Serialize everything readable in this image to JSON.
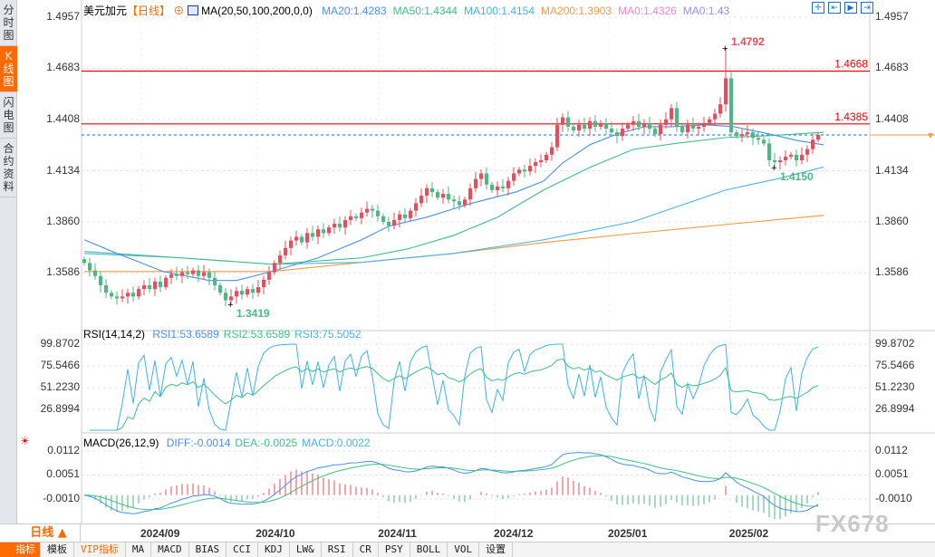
{
  "sidebar": {
    "tabs": [
      {
        "label": "分时图",
        "active": false
      },
      {
        "label": "K线图",
        "active": true
      },
      {
        "label": "闪电图",
        "active": false
      },
      {
        "label": "合约资料",
        "active": false
      }
    ]
  },
  "header": {
    "symbol": "美元加元",
    "period": "【日线】",
    "ma_label": "MA(20,50,100,200,0,0)",
    "ma_values": [
      {
        "text": "MA20:1.4283",
        "color": "#4a90e8"
      },
      {
        "text": "MA50:1.4344",
        "color": "#3fbf86"
      },
      {
        "text": "MA100:1.4154",
        "color": "#48b4e0"
      },
      {
        "text": "MA200:1.3903",
        "color": "#f59a45"
      },
      {
        "text": "MA0:1.4326",
        "color": "#ea86d8"
      },
      {
        "text": "MA0:1.43",
        "color": "#9b8cf0"
      }
    ]
  },
  "toolbar_icons": [
    "crosshair-icon",
    "zoom-range-icon",
    "play-icon",
    "exit-icon"
  ],
  "colors": {
    "up": "#eb4b5a",
    "down": "#4fb783",
    "ma20": "#4a90e8",
    "ma50": "#3fbf86",
    "ma100": "#48b4e0",
    "ma200": "#f59a45",
    "hline": "#f00000",
    "current": "#1a6fd0",
    "rsi_fast": "#3cb4e6",
    "rsi_slow": "#3fbf86"
  },
  "rsi": {
    "label": "RSI(14,14,2)",
    "values": [
      {
        "text": "RSI1:53.6589",
        "color": "#4a90e8"
      },
      {
        "text": "RSI2:53.6589",
        "color": "#3fbf86"
      },
      {
        "text": "RSI3:75.5052",
        "color": "#48b4e0"
      }
    ],
    "ticks": [
      "99.8702",
      "75.5466",
      "51.2230",
      "26.8994"
    ]
  },
  "macd": {
    "label": "MACD(26,12,9)",
    "values": [
      {
        "text": "DIFF:-0.0014",
        "color": "#4a90e8"
      },
      {
        "text": "DEA:-0.0025",
        "color": "#3fbf86"
      },
      {
        "text": "MACD:0.0022",
        "color": "#48b4e0"
      }
    ],
    "ticks": [
      "0.0112",
      "0.0051",
      "-0.0010"
    ]
  },
  "chart_data": {
    "type": "candlestick",
    "price_ticks": [
      "1.4957",
      "1.4683",
      "1.4408",
      "1.4134",
      "1.3860",
      "1.3586"
    ],
    "ylim": [
      1.335,
      1.499
    ],
    "x_ticks": [
      {
        "label": "2024/09",
        "index": 10.5
      },
      {
        "label": "2024/10",
        "index": 31.7
      },
      {
        "label": "2024/11",
        "index": 54.2
      },
      {
        "label": "2024/12",
        "index": 75.5
      },
      {
        "label": "2025/01",
        "index": 96.5
      },
      {
        "label": "2025/02",
        "index": 118.8
      }
    ],
    "closes": [
      1.364,
      1.36,
      1.357,
      1.352,
      1.348,
      1.346,
      1.345,
      1.346,
      1.348,
      1.346,
      1.35,
      1.352,
      1.35,
      1.354,
      1.351,
      1.356,
      1.358,
      1.357,
      1.359,
      1.358,
      1.36,
      1.357,
      1.359,
      1.356,
      1.352,
      1.348,
      1.344,
      1.346,
      1.349,
      1.347,
      1.35,
      1.348,
      1.351,
      1.355,
      1.359,
      1.364,
      1.368,
      1.372,
      1.376,
      1.378,
      1.375,
      1.38,
      1.378,
      1.382,
      1.38,
      1.383,
      1.385,
      1.383,
      1.387,
      1.389,
      1.388,
      1.391,
      1.393,
      1.392,
      1.389,
      1.386,
      1.384,
      1.387,
      1.39,
      1.388,
      1.392,
      1.396,
      1.4,
      1.404,
      1.402,
      1.399,
      1.401,
      1.398,
      1.397,
      1.395,
      1.398,
      1.404,
      1.409,
      1.412,
      1.406,
      1.403,
      1.405,
      1.404,
      1.408,
      1.412,
      1.414,
      1.413,
      1.416,
      1.418,
      1.419,
      1.422,
      1.426,
      1.438,
      1.442,
      1.437,
      1.435,
      1.438,
      1.436,
      1.44,
      1.437,
      1.439,
      1.436,
      1.434,
      1.432,
      1.436,
      1.438,
      1.44,
      1.437,
      1.439,
      1.436,
      1.433,
      1.438,
      1.441,
      1.447,
      1.437,
      1.434,
      1.438,
      1.436,
      1.437,
      1.439,
      1.441,
      1.444,
      1.449,
      1.463,
      1.434,
      1.432,
      1.433,
      1.434,
      1.431,
      1.43,
      1.428,
      1.419,
      1.418,
      1.419,
      1.421,
      1.422,
      1.419,
      1.422,
      1.425,
      1.43,
      1.4326
    ],
    "annotations": [
      {
        "label": "1.4792",
        "index": 118,
        "price": 1.4792,
        "type": "high"
      },
      {
        "label": "1.3419",
        "index": 27,
        "price": 1.3419,
        "type": "low"
      },
      {
        "label": "1.4150",
        "index": 127,
        "price": 1.415,
        "type": "low"
      }
    ],
    "hlines": [
      {
        "label": "1.4668",
        "price": 1.4668
      },
      {
        "label": "1.4385",
        "price": 1.4385
      }
    ],
    "current_price": 1.4326,
    "ma": {
      "ma20": [
        [
          0,
          1.3764
        ],
        [
          6,
          1.3691
        ],
        [
          14.5,
          1.3594
        ],
        [
          23,
          1.3546
        ],
        [
          28,
          1.3546
        ],
        [
          34.5,
          1.3594
        ],
        [
          43,
          1.3667
        ],
        [
          51,
          1.3764
        ],
        [
          56,
          1.3837
        ],
        [
          63,
          1.3885
        ],
        [
          71,
          1.3958
        ],
        [
          79.5,
          1.4021
        ],
        [
          84.5,
          1.4079
        ],
        [
          88,
          1.4176
        ],
        [
          93,
          1.4273
        ],
        [
          98,
          1.4331
        ],
        [
          103,
          1.437
        ],
        [
          108,
          1.437
        ],
        [
          114.5,
          1.438
        ],
        [
          119.5,
          1.437
        ],
        [
          126,
          1.4331
        ],
        [
          131,
          1.4297
        ],
        [
          136,
          1.4273
        ]
      ],
      "ma50": [
        [
          0,
          1.3701
        ],
        [
          18,
          1.3667
        ],
        [
          34.5,
          1.3633
        ],
        [
          51,
          1.3667
        ],
        [
          59.5,
          1.3715
        ],
        [
          68,
          1.3788
        ],
        [
          76,
          1.3885
        ],
        [
          84.5,
          1.4031
        ],
        [
          93,
          1.4152
        ],
        [
          101,
          1.4249
        ],
        [
          109.5,
          1.4283
        ],
        [
          118,
          1.4312
        ],
        [
          126,
          1.4322
        ],
        [
          136,
          1.434
        ]
      ],
      "ma100": [
        [
          0,
          1.3691
        ],
        [
          18,
          1.3667
        ],
        [
          34.5,
          1.3633
        ],
        [
          51,
          1.3643
        ],
        [
          68,
          1.3691
        ],
        [
          84.5,
          1.3764
        ],
        [
          101,
          1.3861
        ],
        [
          118,
          1.4031
        ],
        [
          128,
          1.4094
        ],
        [
          136,
          1.4154
        ]
      ],
      "ma200": [
        [
          0,
          1.3594
        ],
        [
          34.5,
          1.3594
        ],
        [
          51,
          1.3643
        ],
        [
          68,
          1.3691
        ],
        [
          84.5,
          1.3749
        ],
        [
          101,
          1.3798
        ],
        [
          118,
          1.3846
        ],
        [
          136,
          1.3895
        ]
      ]
    }
  },
  "xaxis": {
    "period_label": "日线 ▲"
  },
  "bottom_tabs": [
    "指标",
    "模板",
    "VIP指标",
    "MA",
    "MACD",
    "BIAS",
    "CCI",
    "KDJ",
    "LW&",
    "RSI",
    "CR",
    "PSY",
    "BOLL",
    "VOL",
    "设置"
  ],
  "watermark": "FX678"
}
